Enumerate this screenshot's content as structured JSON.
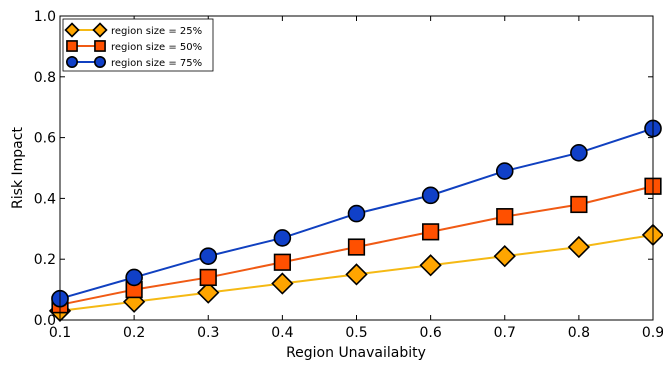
{
  "chart_data": {
    "type": "line",
    "xlabel": "Region Unavailabity",
    "ylabel": "Risk Impact",
    "xlim": [
      0.1,
      0.9
    ],
    "ylim": [
      0.0,
      1.0
    ],
    "xticks": [
      "0.1",
      "0.2",
      "0.3",
      "0.4",
      "0.5",
      "0.6",
      "0.7",
      "0.8",
      "0.9"
    ],
    "yticks": [
      "0.0",
      "0.2",
      "0.4",
      "0.6",
      "0.8",
      "1.0"
    ],
    "grid": false,
    "legend_position": "top-left",
    "x": [
      0.1,
      0.2,
      0.3,
      0.4,
      0.5,
      0.6,
      0.7,
      0.8,
      0.9
    ],
    "series": [
      {
        "name": "region size = 25%",
        "marker": "diamond",
        "color": "#FFA500",
        "line_color": "#F5B914",
        "values": [
          0.03,
          0.06,
          0.09,
          0.12,
          0.15,
          0.18,
          0.21,
          0.24,
          0.28
        ]
      },
      {
        "name": "region size = 50%",
        "marker": "square",
        "color": "#FF5000",
        "line_color": "#F05A14",
        "values": [
          0.05,
          0.1,
          0.14,
          0.19,
          0.24,
          0.29,
          0.34,
          0.38,
          0.44
        ]
      },
      {
        "name": "region size = 75%",
        "marker": "circle",
        "color": "#1040C8",
        "line_color": "#1040C0",
        "values": [
          0.07,
          0.14,
          0.21,
          0.27,
          0.35,
          0.41,
          0.49,
          0.55,
          0.63
        ]
      }
    ]
  }
}
